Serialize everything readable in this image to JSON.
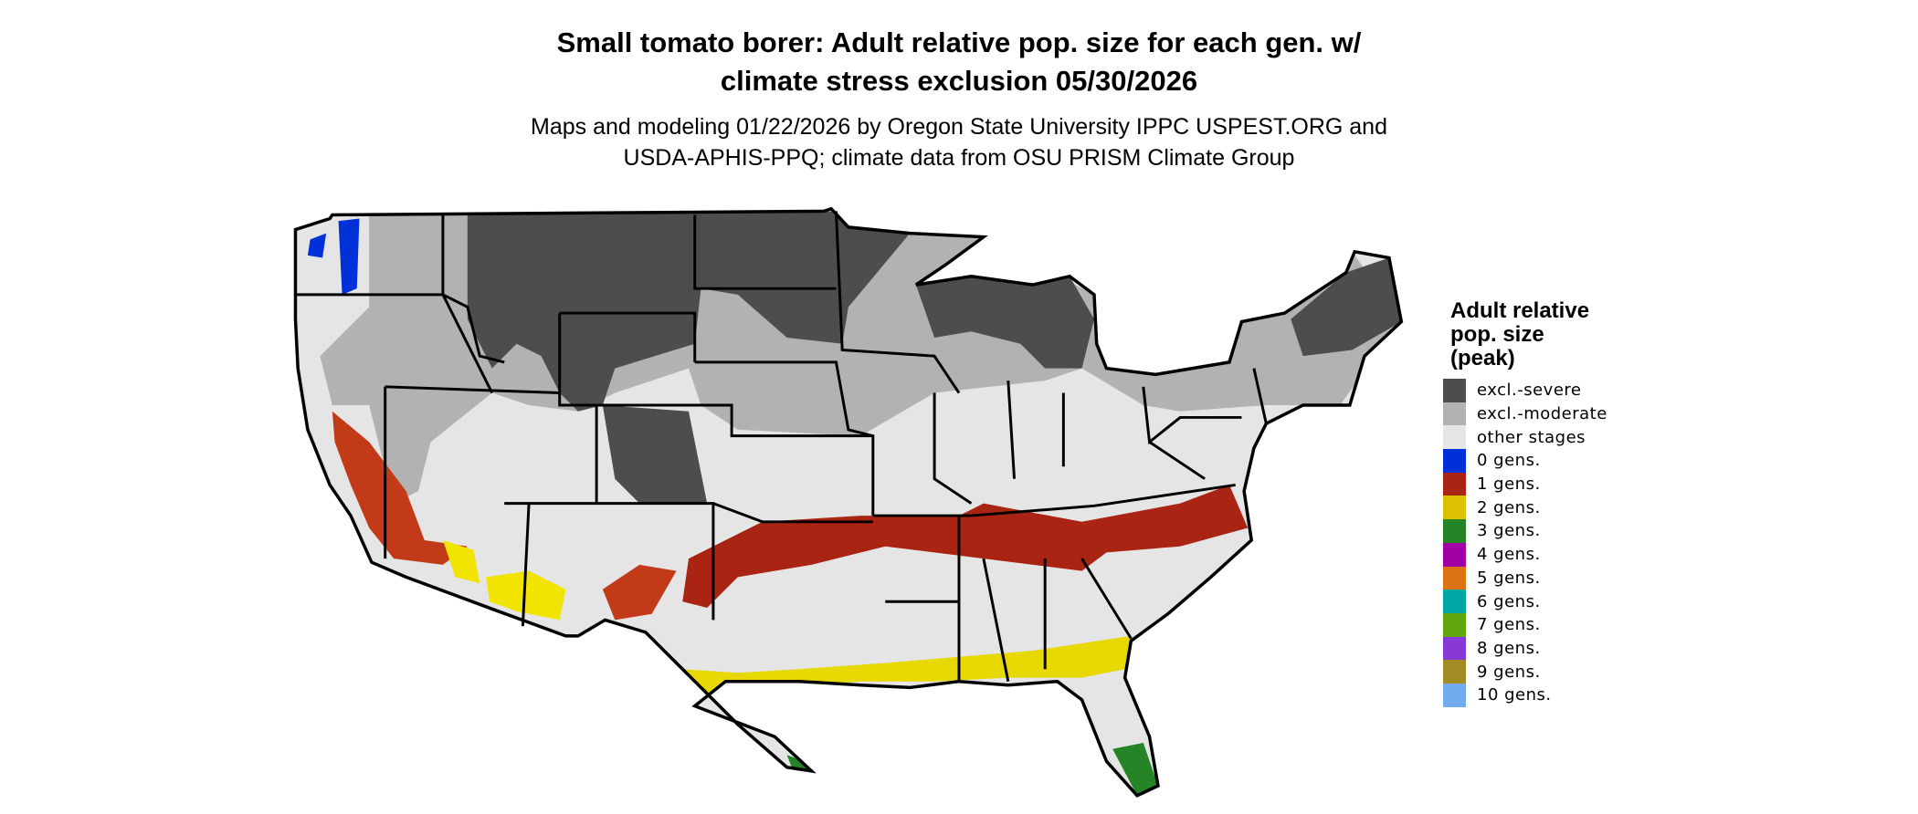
{
  "title": {
    "line1": "Small tomato borer: Adult relative pop. size for each gen. w/",
    "line2": "climate stress exclusion 05/30/2026"
  },
  "subtitle": {
    "line1": "Maps and modeling 01/22/2026 by Oregon State University IPPC USPEST.ORG and",
    "line2": "USDA-APHIS-PPQ; climate data from OSU PRISM Climate Group"
  },
  "legend": {
    "title_lines": [
      "Adult relative",
      "pop. size",
      "(peak)"
    ],
    "items": [
      {
        "label": "excl.-severe",
        "color": "#4d4d4d"
      },
      {
        "label": "excl.-moderate",
        "color": "#b2b2b2"
      },
      {
        "label": "other stages",
        "color": "#e5e5e5"
      },
      {
        "label": "0 gens.",
        "color": "#0030d8"
      },
      {
        "label": "1 gens.",
        "color": "#aa2414"
      },
      {
        "label": "2 gens.",
        "color": "#dcc200"
      },
      {
        "label": "3 gens.",
        "color": "#258526"
      },
      {
        "label": "4 gens.",
        "color": "#a100a6"
      },
      {
        "label": "5 gens.",
        "color": "#dc7414"
      },
      {
        "label": "6 gens.",
        "color": "#00a7a7"
      },
      {
        "label": "7 gens.",
        "color": "#5fa70d"
      },
      {
        "label": "8 gens.",
        "color": "#8838d6"
      },
      {
        "label": "9 gens.",
        "color": "#a08c22"
      },
      {
        "label": "10 gens.",
        "color": "#72aced"
      }
    ]
  }
}
